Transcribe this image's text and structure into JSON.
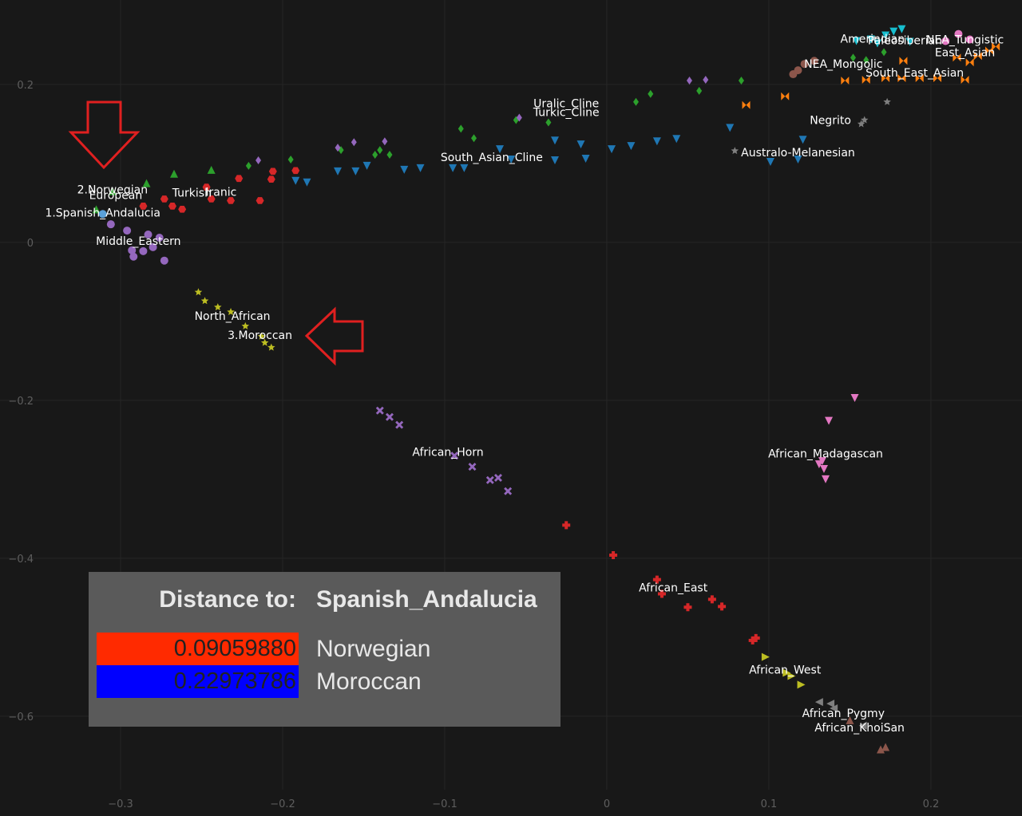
{
  "chart_data": {
    "type": "scatter",
    "xlim": [
      -0.3744,
      0.2562
    ],
    "ylim": [
      -0.693,
      0.307
    ],
    "xticks": [
      {
        "value": -0.3,
        "label": "−0.3"
      },
      {
        "value": -0.2,
        "label": "−0.2"
      },
      {
        "value": -0.1,
        "label": "−0.1"
      },
      0,
      0.1,
      0.2
    ],
    "yticks": [
      {
        "value": -0.6,
        "label": "−0.6"
      },
      {
        "value": -0.4,
        "label": "−0.4"
      },
      {
        "value": -0.2,
        "label": "−0.2"
      },
      0,
      0.2
    ],
    "grid": true,
    "series": [
      {
        "color": "#2ca02c",
        "marker": "triangle",
        "x": [
          -0.315,
          -0.305,
          -0.284,
          -0.267,
          -0.244
        ],
        "y": [
          0.042,
          0.065,
          0.075,
          0.087,
          0.092
        ]
      },
      {
        "color": "#d62728",
        "marker": "hexagon",
        "x": [
          -0.273,
          -0.262,
          -0.247,
          -0.244,
          -0.232,
          -0.227,
          -0.214,
          -0.207,
          -0.206,
          -0.192,
          -0.286,
          -0.268
        ],
        "y": [
          0.055,
          0.042,
          0.07,
          0.055,
          0.053,
          0.081,
          0.053,
          0.08,
          0.09,
          0.091,
          0.046,
          0.046
        ]
      },
      {
        "color": "#9467bd",
        "marker": "circle",
        "x": [
          -0.306,
          -0.296,
          -0.292,
          -0.286,
          -0.283,
          -0.28,
          -0.273,
          -0.293,
          -0.276
        ],
        "y": [
          0.023,
          0.015,
          -0.018,
          -0.011,
          0.01,
          -0.006,
          -0.023,
          -0.01,
          0.006
        ]
      },
      {
        "color": "#5aa0d8",
        "marker": "circle",
        "x": [
          -0.311
        ],
        "y": [
          0.036
        ]
      },
      {
        "color": "#bcbd22",
        "marker": "star",
        "x": [
          -0.252,
          -0.248,
          -0.24,
          -0.232,
          -0.223,
          -0.213,
          -0.211,
          -0.207
        ],
        "y": [
          -0.063,
          -0.074,
          -0.082,
          -0.088,
          -0.106,
          -0.119,
          -0.127,
          -0.133
        ]
      },
      {
        "color": "#9467bd",
        "marker": "x",
        "x": [
          -0.14,
          -0.134,
          -0.128,
          -0.094,
          -0.083,
          -0.072,
          -0.067,
          -0.061
        ],
        "y": [
          -0.213,
          -0.221,
          -0.231,
          -0.27,
          -0.284,
          -0.301,
          -0.298,
          -0.315
        ]
      },
      {
        "color": "#d62728",
        "marker": "cross",
        "x": [
          -0.025,
          0.004,
          0.031,
          0.034,
          0.05,
          0.065,
          0.071,
          0.092,
          0.09
        ],
        "y": [
          -0.358,
          -0.396,
          -0.427,
          -0.445,
          -0.462,
          -0.452,
          -0.461,
          -0.501,
          -0.504
        ]
      },
      {
        "color": "#bcbd22",
        "marker": "tri-right",
        "x": [
          0.098,
          0.111,
          0.114,
          0.12
        ],
        "y": [
          -0.525,
          -0.545,
          -0.549,
          -0.56
        ]
      },
      {
        "color": "#7f7f7f",
        "marker": "tri-left",
        "x": [
          0.131,
          0.138,
          0.14,
          0.158
        ],
        "y": [
          -0.582,
          -0.584,
          -0.59,
          -0.612
        ]
      },
      {
        "color": "#8c564b",
        "marker": "triangle",
        "x": [
          0.15,
          0.169,
          0.172
        ],
        "y": [
          -0.605,
          -0.642,
          -0.639
        ]
      },
      {
        "color": "#e377c2",
        "marker": "tri-down",
        "x": [
          0.153,
          0.137,
          0.133,
          0.134,
          0.135,
          0.131
        ],
        "y": [
          -0.197,
          -0.226,
          -0.277,
          -0.287,
          -0.3,
          -0.281
        ]
      },
      {
        "color": "#1f77b4",
        "marker": "tri-down",
        "x": [
          -0.192,
          -0.185,
          -0.166,
          -0.155,
          -0.148,
          -0.125,
          -0.115,
          -0.095,
          -0.088,
          -0.066,
          -0.059,
          -0.032,
          -0.032,
          -0.016,
          -0.013,
          0.003,
          0.015,
          0.031,
          0.043,
          0.076,
          0.101,
          0.121,
          0.118
        ],
        "y": [
          0.078,
          0.076,
          0.09,
          0.09,
          0.097,
          0.092,
          0.094,
          0.094,
          0.094,
          0.118,
          0.105,
          0.129,
          0.104,
          0.124,
          0.106,
          0.118,
          0.122,
          0.128,
          0.131,
          0.145,
          0.102,
          0.13,
          0.105
        ]
      },
      {
        "color": "#2ca02c",
        "marker": "diamond",
        "x": [
          -0.221,
          -0.195,
          -0.164,
          -0.143,
          -0.14,
          -0.134,
          -0.09,
          -0.082,
          -0.056,
          -0.036,
          0.018,
          0.027,
          0.057,
          0.083,
          0.152,
          0.171,
          0.16
        ],
        "y": [
          0.097,
          0.105,
          0.117,
          0.111,
          0.117,
          0.111,
          0.144,
          0.132,
          0.155,
          0.152,
          0.178,
          0.188,
          0.192,
          0.205,
          0.234,
          0.241,
          0.231
        ]
      },
      {
        "color": "#9467bd",
        "marker": "diamond",
        "x": [
          -0.215,
          -0.166,
          -0.156,
          -0.137,
          -0.054,
          0.051,
          0.061
        ],
        "y": [
          0.104,
          0.12,
          0.127,
          0.128,
          0.158,
          0.205,
          0.206
        ]
      },
      {
        "color": "#7f7f7f",
        "marker": "star",
        "x": [
          0.079,
          0.159,
          0.173,
          0.157
        ],
        "y": [
          0.116,
          0.155,
          0.178,
          0.15
        ]
      },
      {
        "color": "#8c564b",
        "marker": "circle",
        "x": [
          0.115,
          0.118,
          0.122,
          0.128
        ],
        "y": [
          0.213,
          0.218,
          0.226,
          0.23
        ]
      },
      {
        "color": "#ff7f0e",
        "marker": "bowtie",
        "x": [
          0.086,
          0.11,
          0.147,
          0.16,
          0.172,
          0.182,
          0.193,
          0.204,
          0.221,
          0.216,
          0.224,
          0.229,
          0.236,
          0.24,
          0.183
        ],
        "y": [
          0.174,
          0.185,
          0.205,
          0.206,
          0.208,
          0.208,
          0.208,
          0.208,
          0.206,
          0.234,
          0.228,
          0.236,
          0.243,
          0.248,
          0.23
        ]
      },
      {
        "color": "#17becf",
        "marker": "tri-down",
        "x": [
          0.154,
          0.163,
          0.172,
          0.182,
          0.187,
          0.167,
          0.177
        ],
        "y": [
          0.255,
          0.257,
          0.262,
          0.27,
          0.254,
          0.252,
          0.267
        ]
      },
      {
        "color": "#e377c2",
        "marker": "circle",
        "x": [
          0.217,
          0.224,
          0.209
        ],
        "y": [
          0.264,
          0.257,
          0.255
        ]
      }
    ],
    "annotations": [
      {
        "text": "2.Norwegian",
        "x": -0.305,
        "y": 0.067
      },
      {
        "text": "European",
        "x": -0.303,
        "y": 0.06
      },
      {
        "text": "1.Spanish_Andalucia",
        "x": -0.311,
        "y": 0.038
      },
      {
        "text": "Turkish",
        "x": -0.256,
        "y": 0.063
      },
      {
        "text": "Iranic",
        "x": -0.238,
        "y": 0.064
      },
      {
        "text": "Middle_Eastern",
        "x": -0.289,
        "y": 0.002
      },
      {
        "text": "North_African",
        "x": -0.231,
        "y": -0.093
      },
      {
        "text": "3.Moroccan",
        "x": -0.214,
        "y": -0.117
      },
      {
        "text": "African_Horn",
        "x": -0.098,
        "y": -0.265
      },
      {
        "text": "Uralic_Cline",
        "x": -0.025,
        "y": 0.176
      },
      {
        "text": "Turkic_Cline",
        "x": -0.025,
        "y": 0.165
      },
      {
        "text": "South_Asian_Cline",
        "x": -0.071,
        "y": 0.108
      },
      {
        "text": "Amerindian",
        "x": 0.164,
        "y": 0.258
      },
      {
        "text": "Paleosiberian",
        "x": 0.184,
        "y": 0.256
      },
      {
        "text": "NEA_Tungistic",
        "x": 0.221,
        "y": 0.257
      },
      {
        "text": "East_Asian",
        "x": 0.221,
        "y": 0.241
      },
      {
        "text": "NEA_Mongolic",
        "x": 0.146,
        "y": 0.226
      },
      {
        "text": "South_East_Asian",
        "x": 0.19,
        "y": 0.215
      },
      {
        "text": "Negrito",
        "x": 0.138,
        "y": 0.155
      },
      {
        "text": "Australo-Melanesian",
        "x": 0.118,
        "y": 0.114
      },
      {
        "text": "African_Madagascan",
        "x": 0.135,
        "y": -0.267
      },
      {
        "text": "African_East",
        "x": 0.041,
        "y": -0.437
      },
      {
        "text": "African_West",
        "x": 0.11,
        "y": -0.541
      },
      {
        "text": "African_Pygmy",
        "x": 0.146,
        "y": -0.596
      },
      {
        "text": "African_KhoiSan",
        "x": 0.156,
        "y": -0.614
      }
    ]
  },
  "distance_table": {
    "header": [
      "Distance to:",
      "Spanish_Andalucia"
    ],
    "rows": [
      {
        "value": "0.09059880",
        "name": "Norwegian",
        "color": "#ff2a00"
      },
      {
        "value": "0.22973786",
        "name": "Moroccan",
        "color": "#0000ff"
      }
    ]
  }
}
